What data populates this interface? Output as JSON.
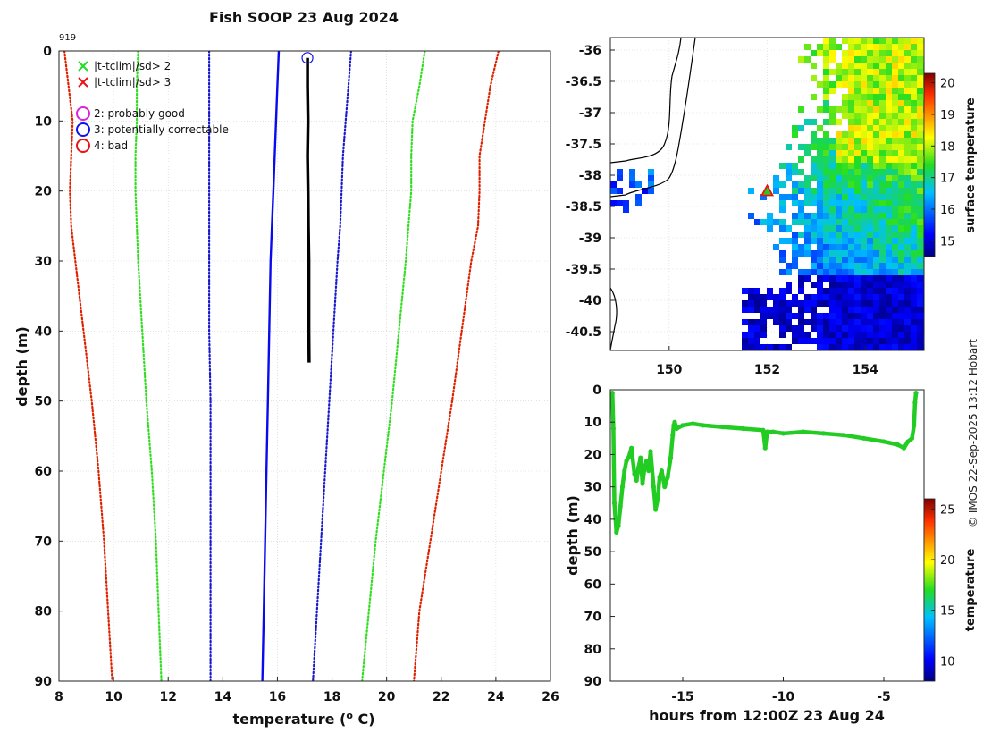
{
  "figure": {
    "title": "Fish SOOP 23 Aug 2024",
    "credit": "© IMOS 22-Sep-2025 13:12 Hobart"
  },
  "chart_data": [
    {
      "id": "profile",
      "type": "line",
      "title": "Fish SOOP 23 Aug 2024",
      "profile_id": "919",
      "xlabel": "temperature (",
      "xlabel_sup": "o",
      "xlabel_suffix": " C)",
      "ylabel": "depth (m)",
      "xlim": [
        8,
        26
      ],
      "ylim": [
        0,
        90
      ],
      "y_inverted": true,
      "grid": true,
      "xticks": [
        8,
        10,
        12,
        14,
        16,
        18,
        20,
        22,
        24,
        26
      ],
      "yticks": [
        0,
        10,
        20,
        30,
        40,
        50,
        60,
        70,
        80,
        90
      ],
      "legend": {
        "position": "top-left",
        "entries": [
          {
            "marker": "x",
            "color": "#22dd22",
            "label": "|t-tclim|/sd> 2"
          },
          {
            "marker": "x",
            "color": "#ee1111",
            "label": "|t-tclim|/sd> 3"
          },
          {
            "marker": "o",
            "color": "#dd22dd",
            "label": "2: probably good"
          },
          {
            "marker": "o",
            "color": "#1111ee",
            "label": "3: potentially correctable"
          },
          {
            "marker": "o",
            "color": "#ee1111",
            "label": "4: bad"
          }
        ]
      },
      "series": [
        {
          "name": "clim_minus_3sd",
          "style": "dotted",
          "color": "#dd2200",
          "temp": [
            8.2,
            8.35,
            8.5,
            8.45,
            8.4,
            8.45,
            8.6,
            8.9,
            9.2,
            9.45,
            9.65,
            9.8,
            9.95
          ],
          "depth": [
            0,
            5,
            10,
            15,
            20,
            25,
            30,
            40,
            50,
            60,
            70,
            80,
            90
          ]
        },
        {
          "name": "clim_minus_2sd",
          "style": "dotted",
          "color": "#33dd22",
          "temp": [
            10.9,
            10.85,
            10.85,
            10.8,
            10.8,
            10.85,
            10.9,
            11.05,
            11.2,
            11.4,
            11.55,
            11.65,
            11.75
          ],
          "depth": [
            0,
            5,
            10,
            15,
            20,
            25,
            30,
            40,
            50,
            60,
            70,
            80,
            90
          ]
        },
        {
          "name": "clim_mean",
          "style": "solid",
          "color": "#0a0aee",
          "temp": [
            16.05,
            16.0,
            15.95,
            15.9,
            15.85,
            15.8,
            15.75,
            15.7,
            15.65,
            15.6,
            15.55,
            15.5,
            15.45
          ],
          "depth": [
            0,
            5,
            10,
            15,
            20,
            25,
            30,
            40,
            50,
            60,
            70,
            80,
            90
          ]
        },
        {
          "name": "clim_mean_minus_sd",
          "style": "dotted",
          "color": "#1a1acc",
          "temp": [
            13.5,
            13.5,
            13.5,
            13.5,
            13.5,
            13.5,
            13.5,
            13.5,
            13.55,
            13.55,
            13.55,
            13.55,
            13.55
          ],
          "depth": [
            0,
            5,
            10,
            15,
            20,
            25,
            30,
            40,
            50,
            60,
            70,
            80,
            90
          ]
        },
        {
          "name": "clim_mean_plus_sd",
          "style": "dotted",
          "color": "#1a1acc",
          "temp": [
            18.7,
            18.6,
            18.5,
            18.4,
            18.35,
            18.3,
            18.2,
            18.05,
            17.9,
            17.75,
            17.6,
            17.45,
            17.3
          ],
          "depth": [
            0,
            5,
            10,
            15,
            20,
            25,
            30,
            40,
            50,
            60,
            70,
            80,
            90
          ]
        },
        {
          "name": "clim_plus_2sd",
          "style": "dotted",
          "color": "#33dd22",
          "temp": [
            21.4,
            21.2,
            20.95,
            20.9,
            20.9,
            20.8,
            20.7,
            20.45,
            20.2,
            19.9,
            19.6,
            19.35,
            19.1
          ],
          "depth": [
            0,
            5,
            10,
            15,
            20,
            25,
            30,
            40,
            50,
            60,
            70,
            80,
            90
          ]
        },
        {
          "name": "clim_plus_3sd",
          "style": "dotted",
          "color": "#dd2200",
          "temp": [
            24.1,
            23.8,
            23.6,
            23.4,
            23.4,
            23.35,
            23.1,
            22.75,
            22.4,
            22.0,
            21.6,
            21.2,
            21.0
          ],
          "depth": [
            0,
            5,
            10,
            15,
            20,
            25,
            30,
            40,
            50,
            60,
            70,
            80,
            90
          ]
        },
        {
          "name": "observed_temperature",
          "style": "thick",
          "color": "#000000",
          "temp": [
            17.1,
            17.1,
            17.12,
            17.1,
            17.12,
            17.13,
            17.15,
            17.15,
            17.16
          ],
          "depth": [
            1,
            5,
            10,
            15,
            20,
            25,
            30,
            40,
            44.5
          ]
        }
      ],
      "flag_marker": {
        "temp": 17.1,
        "depth": 1,
        "color": "#1111ee"
      }
    },
    {
      "id": "sst_map",
      "type": "heatmap",
      "xlim": [
        148.8,
        155.2
      ],
      "ylim": [
        -40.8,
        -35.8
      ],
      "xticks": [
        150,
        152,
        154
      ],
      "yticks": [
        -36,
        -36.5,
        -37,
        -37.5,
        -38,
        -38.5,
        -39,
        -39.5,
        -40,
        -40.5
      ],
      "colorbar": {
        "label": "surface temperature",
        "range": [
          14.5,
          20.3
        ],
        "ticks": [
          15,
          16,
          17,
          18,
          19,
          20
        ]
      },
      "profile_location": {
        "lon": 152.0,
        "lat": -38.25
      }
    },
    {
      "id": "track_depth",
      "type": "scatter",
      "xlabel": "hours from 12:00Z 23 Aug 24",
      "ylabel": "depth (m)",
      "xlim": [
        -18.6,
        -3.0
      ],
      "ylim": [
        0,
        90
      ],
      "y_inverted": true,
      "xticks": [
        -15,
        -10,
        -5
      ],
      "yticks": [
        0,
        10,
        20,
        30,
        40,
        50,
        60,
        70,
        80,
        90
      ],
      "colorbar": {
        "label": "temperature",
        "range": [
          8,
          26
        ],
        "ticks": [
          10,
          15,
          20,
          25
        ]
      },
      "series": [
        {
          "name": "track",
          "color": "#22cc22",
          "x": [
            -18.5,
            -18.45,
            -18.4,
            -18.3,
            -18.2,
            -18.1,
            -18.0,
            -17.9,
            -17.8,
            -17.7,
            -17.55,
            -17.4,
            -17.3,
            -17.2,
            -17.1,
            -17.0,
            -16.9,
            -16.8,
            -16.7,
            -16.6,
            -16.45,
            -16.35,
            -16.25,
            -16.15,
            -16.05,
            -15.9,
            -15.75,
            -15.6,
            -15.5,
            -15.45,
            -15.4,
            -15.3,
            -15.0,
            -14.5,
            -14.0,
            -13.0,
            -12.0,
            -11.0,
            -10.9,
            -10.8,
            -10.5,
            -10.0,
            -9.0,
            -8.0,
            -7.0,
            -6.0,
            -5.0,
            -4.3,
            -4.0,
            -3.8,
            -3.6,
            -3.5,
            -3.45,
            -3.4
          ],
          "y": [
            1,
            12,
            35,
            44,
            42,
            36,
            30,
            25,
            22,
            21,
            18,
            26,
            28,
            24,
            21,
            29,
            24,
            22,
            25,
            19,
            30,
            37,
            34,
            27,
            25,
            30,
            27,
            21,
            14,
            11,
            10,
            12,
            11,
            10.5,
            11,
            11.5,
            12,
            12.5,
            18,
            13,
            13,
            13.5,
            13,
            13.5,
            14,
            15,
            16,
            17,
            18,
            16,
            15,
            11,
            4,
            1
          ]
        }
      ]
    }
  ]
}
